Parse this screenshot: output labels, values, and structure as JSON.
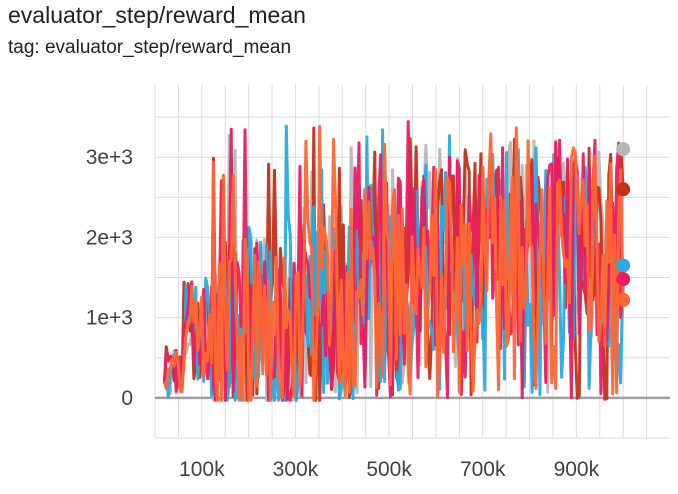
{
  "title": "evaluator_step/reward_mean",
  "subtitle": "tag: evaluator_step/reward_mean",
  "chart_data": {
    "type": "line",
    "xlim": [
      0,
      1100000
    ],
    "ylim": [
      -500,
      3900
    ],
    "x_ticks": [
      100000,
      300000,
      500000,
      700000,
      900000
    ],
    "x_tick_labels": [
      "100k",
      "300k",
      "500k",
      "700k",
      "900k"
    ],
    "y_ticks": [
      0,
      1000,
      2000,
      3000
    ],
    "y_tick_labels": [
      "0",
      "1e+3",
      "2e+3",
      "3e+3"
    ],
    "grid": true,
    "series": [
      {
        "color": "#b7b7b7",
        "last_value": 3100
      },
      {
        "color": "#c4301a",
        "last_value": 2600
      },
      {
        "color": "#29abe2",
        "last_value": 1650
      },
      {
        "color": "#e91e63",
        "last_value": 1480
      },
      {
        "color": "#ff6633",
        "last_value": 1220
      }
    ]
  }
}
